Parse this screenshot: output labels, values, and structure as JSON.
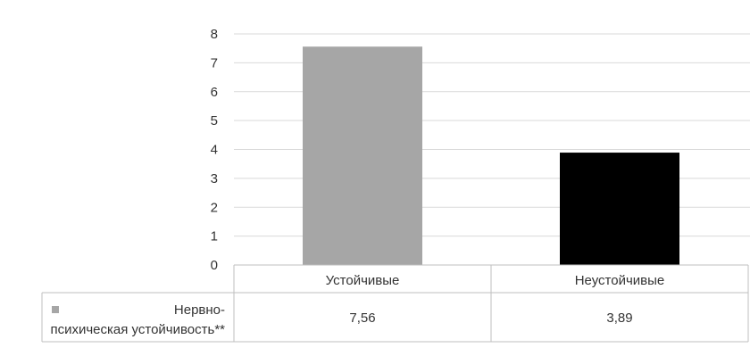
{
  "chart_data": {
    "type": "bar",
    "categories": [
      "Устойчивые",
      "Неустойчивые"
    ],
    "series": [
      {
        "name": "Нервно-психическая устойчивость**",
        "values": [
          7.56,
          3.89
        ],
        "value_labels": [
          "7,56",
          "3,89"
        ],
        "bar_colors": [
          "#a6a6a6",
          "#000000"
        ]
      }
    ],
    "y_ticks": [
      "0",
      "1",
      "2",
      "3",
      "4",
      "5",
      "6",
      "7",
      "8"
    ],
    "ylim": [
      0,
      8
    ],
    "grid": true,
    "data_table": true,
    "legend_placement": "data-table-row",
    "colors": {
      "gridline": "#d9d9d9",
      "table_border": "#bfbfbf",
      "legend_key": "#a6a6a6",
      "text": "#333333"
    }
  }
}
